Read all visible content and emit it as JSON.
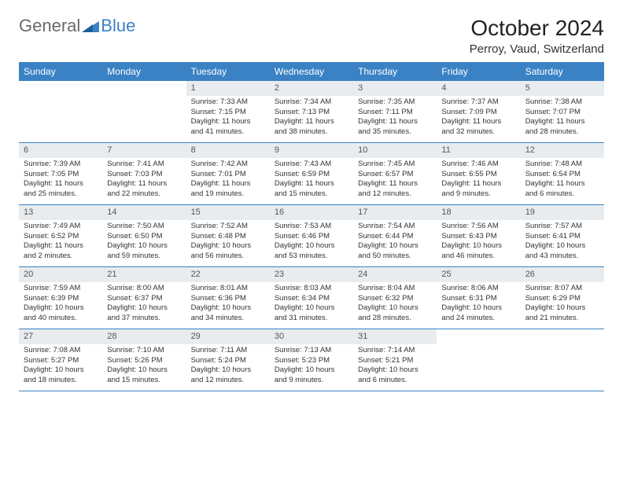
{
  "logo": {
    "general": "General",
    "blue": "Blue"
  },
  "title": "October 2024",
  "location": "Perroy, Vaud, Switzerland",
  "colors": {
    "header_bg": "#3a82c4",
    "daynum_bg": "#e9ecef",
    "rule": "#3a82c4",
    "logo_gray": "#6a6a6a",
    "logo_blue": "#3a82c4"
  },
  "weekdays": [
    "Sunday",
    "Monday",
    "Tuesday",
    "Wednesday",
    "Thursday",
    "Friday",
    "Saturday"
  ],
  "weeks": [
    [
      {
        "n": "",
        "sr": "",
        "ss": "",
        "dl": ""
      },
      {
        "n": "",
        "sr": "",
        "ss": "",
        "dl": ""
      },
      {
        "n": "1",
        "sr": "Sunrise: 7:33 AM",
        "ss": "Sunset: 7:15 PM",
        "dl": "Daylight: 11 hours and 41 minutes."
      },
      {
        "n": "2",
        "sr": "Sunrise: 7:34 AM",
        "ss": "Sunset: 7:13 PM",
        "dl": "Daylight: 11 hours and 38 minutes."
      },
      {
        "n": "3",
        "sr": "Sunrise: 7:35 AM",
        "ss": "Sunset: 7:11 PM",
        "dl": "Daylight: 11 hours and 35 minutes."
      },
      {
        "n": "4",
        "sr": "Sunrise: 7:37 AM",
        "ss": "Sunset: 7:09 PM",
        "dl": "Daylight: 11 hours and 32 minutes."
      },
      {
        "n": "5",
        "sr": "Sunrise: 7:38 AM",
        "ss": "Sunset: 7:07 PM",
        "dl": "Daylight: 11 hours and 28 minutes."
      }
    ],
    [
      {
        "n": "6",
        "sr": "Sunrise: 7:39 AM",
        "ss": "Sunset: 7:05 PM",
        "dl": "Daylight: 11 hours and 25 minutes."
      },
      {
        "n": "7",
        "sr": "Sunrise: 7:41 AM",
        "ss": "Sunset: 7:03 PM",
        "dl": "Daylight: 11 hours and 22 minutes."
      },
      {
        "n": "8",
        "sr": "Sunrise: 7:42 AM",
        "ss": "Sunset: 7:01 PM",
        "dl": "Daylight: 11 hours and 19 minutes."
      },
      {
        "n": "9",
        "sr": "Sunrise: 7:43 AM",
        "ss": "Sunset: 6:59 PM",
        "dl": "Daylight: 11 hours and 15 minutes."
      },
      {
        "n": "10",
        "sr": "Sunrise: 7:45 AM",
        "ss": "Sunset: 6:57 PM",
        "dl": "Daylight: 11 hours and 12 minutes."
      },
      {
        "n": "11",
        "sr": "Sunrise: 7:46 AM",
        "ss": "Sunset: 6:55 PM",
        "dl": "Daylight: 11 hours and 9 minutes."
      },
      {
        "n": "12",
        "sr": "Sunrise: 7:48 AM",
        "ss": "Sunset: 6:54 PM",
        "dl": "Daylight: 11 hours and 6 minutes."
      }
    ],
    [
      {
        "n": "13",
        "sr": "Sunrise: 7:49 AM",
        "ss": "Sunset: 6:52 PM",
        "dl": "Daylight: 11 hours and 2 minutes."
      },
      {
        "n": "14",
        "sr": "Sunrise: 7:50 AM",
        "ss": "Sunset: 6:50 PM",
        "dl": "Daylight: 10 hours and 59 minutes."
      },
      {
        "n": "15",
        "sr": "Sunrise: 7:52 AM",
        "ss": "Sunset: 6:48 PM",
        "dl": "Daylight: 10 hours and 56 minutes."
      },
      {
        "n": "16",
        "sr": "Sunrise: 7:53 AM",
        "ss": "Sunset: 6:46 PM",
        "dl": "Daylight: 10 hours and 53 minutes."
      },
      {
        "n": "17",
        "sr": "Sunrise: 7:54 AM",
        "ss": "Sunset: 6:44 PM",
        "dl": "Daylight: 10 hours and 50 minutes."
      },
      {
        "n": "18",
        "sr": "Sunrise: 7:56 AM",
        "ss": "Sunset: 6:43 PM",
        "dl": "Daylight: 10 hours and 46 minutes."
      },
      {
        "n": "19",
        "sr": "Sunrise: 7:57 AM",
        "ss": "Sunset: 6:41 PM",
        "dl": "Daylight: 10 hours and 43 minutes."
      }
    ],
    [
      {
        "n": "20",
        "sr": "Sunrise: 7:59 AM",
        "ss": "Sunset: 6:39 PM",
        "dl": "Daylight: 10 hours and 40 minutes."
      },
      {
        "n": "21",
        "sr": "Sunrise: 8:00 AM",
        "ss": "Sunset: 6:37 PM",
        "dl": "Daylight: 10 hours and 37 minutes."
      },
      {
        "n": "22",
        "sr": "Sunrise: 8:01 AM",
        "ss": "Sunset: 6:36 PM",
        "dl": "Daylight: 10 hours and 34 minutes."
      },
      {
        "n": "23",
        "sr": "Sunrise: 8:03 AM",
        "ss": "Sunset: 6:34 PM",
        "dl": "Daylight: 10 hours and 31 minutes."
      },
      {
        "n": "24",
        "sr": "Sunrise: 8:04 AM",
        "ss": "Sunset: 6:32 PM",
        "dl": "Daylight: 10 hours and 28 minutes."
      },
      {
        "n": "25",
        "sr": "Sunrise: 8:06 AM",
        "ss": "Sunset: 6:31 PM",
        "dl": "Daylight: 10 hours and 24 minutes."
      },
      {
        "n": "26",
        "sr": "Sunrise: 8:07 AM",
        "ss": "Sunset: 6:29 PM",
        "dl": "Daylight: 10 hours and 21 minutes."
      }
    ],
    [
      {
        "n": "27",
        "sr": "Sunrise: 7:08 AM",
        "ss": "Sunset: 5:27 PM",
        "dl": "Daylight: 10 hours and 18 minutes."
      },
      {
        "n": "28",
        "sr": "Sunrise: 7:10 AM",
        "ss": "Sunset: 5:26 PM",
        "dl": "Daylight: 10 hours and 15 minutes."
      },
      {
        "n": "29",
        "sr": "Sunrise: 7:11 AM",
        "ss": "Sunset: 5:24 PM",
        "dl": "Daylight: 10 hours and 12 minutes."
      },
      {
        "n": "30",
        "sr": "Sunrise: 7:13 AM",
        "ss": "Sunset: 5:23 PM",
        "dl": "Daylight: 10 hours and 9 minutes."
      },
      {
        "n": "31",
        "sr": "Sunrise: 7:14 AM",
        "ss": "Sunset: 5:21 PM",
        "dl": "Daylight: 10 hours and 6 minutes."
      },
      {
        "n": "",
        "sr": "",
        "ss": "",
        "dl": ""
      },
      {
        "n": "",
        "sr": "",
        "ss": "",
        "dl": ""
      }
    ]
  ]
}
